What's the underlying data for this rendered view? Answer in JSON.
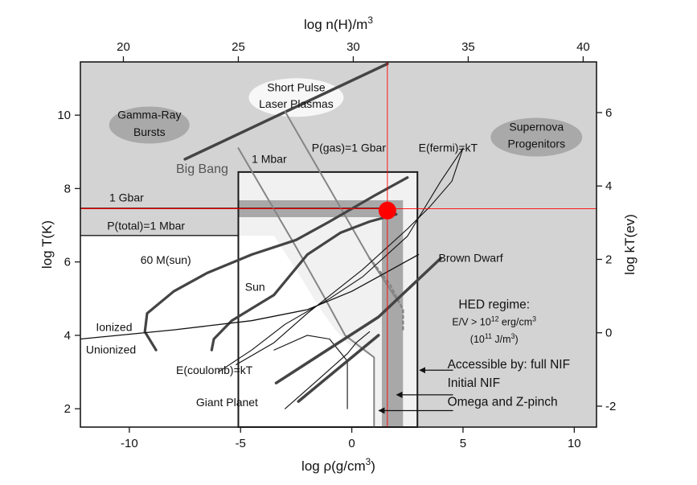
{
  "chart_data": {
    "type": "line",
    "title": "",
    "x_axis": {
      "label_prefix": "log ",
      "label_rho": "ρ",
      "label_suffix": "(g/cm",
      "label_sup": "3",
      "label_close": ")",
      "range": [
        -12.2,
        11
      ],
      "ticks": [
        -10,
        -5,
        0,
        5,
        10
      ]
    },
    "y_axis": {
      "label": "log T(K)",
      "range": [
        1.5,
        11.45
      ],
      "ticks": [
        2,
        4,
        6,
        8,
        10
      ]
    },
    "top_axis": {
      "label_prefix": "log n(H)/m",
      "label_sup": "3",
      "ticks": [
        20,
        25,
        30,
        35,
        40
      ]
    },
    "right_axis": {
      "label": "log kT(ev)",
      "ticks": [
        -2,
        0,
        2,
        4,
        6
      ]
    },
    "grid": false,
    "colors": {
      "hed_region": "#d3d3d3",
      "inner_box": "#f1f1f1",
      "gray_band": "#a8a8a8",
      "curve_dark": "#444444",
      "curve_gray": "#858585",
      "red": "#ff0000",
      "ellipse_dark": "#a9a9a9",
      "ellipse_light": "#f7f7f7"
    },
    "reference_point": {
      "x": 1.6,
      "y": 7.4
    },
    "crosshair": {
      "x": 1.6,
      "y": 7.45
    },
    "series": [
      {
        "kind": "big-bang",
        "points": [
          [
            -7.5,
            8.8
          ],
          [
            1.6,
            11.4
          ]
        ]
      },
      {
        "kind": "1-gbar-line",
        "points": [
          [
            -12.2,
            7.46
          ],
          [
            1.6,
            7.46
          ]
        ]
      },
      {
        "kind": "p-total-1-mbar",
        "points": [
          [
            -12.2,
            6.72
          ],
          [
            -5.1,
            6.72
          ]
        ]
      },
      {
        "kind": "1-mbar",
        "points": [
          [
            -5.1,
            9.1
          ],
          [
            -2.5,
            6.4
          ],
          [
            -1.2,
            5.0
          ],
          [
            -0.3,
            4.0
          ],
          [
            1.0,
            3.4
          ],
          [
            1.0,
            1.5
          ]
        ]
      },
      {
        "kind": "p-gas-1-gbar",
        "points": [
          [
            -3.0,
            10.1
          ],
          [
            -1.0,
            8.0
          ],
          [
            0.8,
            6.1
          ],
          [
            2.0,
            5.0
          ]
        ]
      },
      {
        "kind": "p-gas-1-gbar-dotted",
        "points": [
          [
            0.8,
            6.1
          ],
          [
            1.7,
            5.4
          ],
          [
            2.3,
            4.7
          ],
          [
            2.3,
            4.1
          ]
        ]
      },
      {
        "kind": "60-m-sun",
        "points": [
          [
            -8.8,
            3.6
          ],
          [
            -9.3,
            4.1
          ],
          [
            -9.2,
            4.6
          ],
          [
            -8.0,
            5.2
          ],
          [
            -6.5,
            5.7
          ],
          [
            -4.5,
            6.2
          ],
          [
            -2.5,
            6.6
          ],
          [
            -1.0,
            7.1
          ],
          [
            1.0,
            7.8
          ],
          [
            2.5,
            8.3
          ]
        ]
      },
      {
        "kind": "sun",
        "points": [
          [
            -6.3,
            3.6
          ],
          [
            -6.2,
            3.9
          ],
          [
            -5.4,
            4.4
          ],
          [
            -3.5,
            5.1
          ],
          [
            -2.0,
            6.2
          ],
          [
            -0.5,
            6.8
          ],
          [
            0.8,
            7.1
          ],
          [
            2.0,
            7.3
          ]
        ]
      },
      {
        "kind": "unionized-boundary",
        "points": [
          [
            -12.2,
            3.9
          ],
          [
            -8.0,
            4.15
          ],
          [
            -4.5,
            4.4
          ],
          [
            -2.0,
            4.7
          ],
          [
            0.0,
            5.2
          ],
          [
            1.5,
            5.7
          ],
          [
            3.0,
            6.2
          ]
        ]
      },
      {
        "kind": "e-coulomb-kt",
        "points": [
          [
            -6.0,
            3.0
          ],
          [
            -4.5,
            3.6
          ],
          [
            -3.0,
            4.3
          ],
          [
            -1.0,
            5.0
          ],
          [
            0.5,
            5.6
          ],
          [
            2.5,
            6.7
          ],
          [
            4.0,
            8.2
          ],
          [
            5.0,
            9.1
          ]
        ]
      },
      {
        "kind": "e-fermi-kt",
        "points": [
          [
            -5.2,
            3.2
          ],
          [
            -3.5,
            3.8
          ],
          [
            -2.0,
            4.6
          ],
          [
            0.5,
            5.8
          ],
          [
            2.5,
            6.9
          ],
          [
            3.5,
            7.5
          ],
          [
            4.5,
            8.2
          ],
          [
            5.0,
            9.1
          ]
        ]
      },
      {
        "kind": "giant-planet",
        "points": [
          [
            -3.0,
            2.0
          ],
          [
            -1.5,
            2.8
          ],
          [
            -0.2,
            3.5
          ],
          [
            0.2,
            3.8
          ],
          [
            0.8,
            4.1
          ]
        ]
      },
      {
        "kind": "giant-planet-dome",
        "points": [
          [
            -0.2,
            2.0
          ],
          [
            -0.2,
            3.3
          ],
          [
            -1.0,
            3.9
          ],
          [
            -2.0,
            4.0
          ],
          [
            -3.5,
            3.6
          ]
        ]
      },
      {
        "kind": "brown-dwarf",
        "points": [
          [
            -3.4,
            2.7
          ],
          [
            1.2,
            4.5
          ],
          [
            4.0,
            6.1
          ]
        ]
      },
      {
        "kind": "brown-dwarf-lower",
        "points": [
          [
            -2.4,
            2.2
          ],
          [
            1.2,
            4.0
          ]
        ]
      }
    ],
    "annotations": {
      "big_bang": "Big Bang",
      "one_gbar": "1 Gbar",
      "p_total": "P(total)=1 Mbar",
      "one_mbar": "1 Mbar",
      "p_gas": "P(gas)=1 Gbar",
      "e_fermi": "E(fermi)=kT",
      "e_coulomb": "E(coulomb)=kT",
      "sixty_m_sun": "60 M(sun)",
      "sun": "Sun",
      "ionized": "Ionized",
      "unionized": "Unionized",
      "giant_planet": "Giant Planet",
      "brown_dwarf": "Brown Dwarf",
      "hed_title": "HED regime:",
      "hed_ev_prefix": "E/V > 10",
      "hed_ev_sup": "12",
      "hed_ev_suffix": " erg/cm",
      "hed_ev_sup2": "3",
      "hed_jm_prefix": "(10",
      "hed_jm_sup": "11",
      "hed_jm_suffix": " J/m",
      "hed_jm_sup2": "3",
      "hed_jm_close": ")",
      "accessible_full_nif": "Accessible by: full NIF",
      "initial_nif": "Initial NIF",
      "omega_zpinch": "Omega and Z-pinch",
      "gamma_ray_1": "Gamma-Ray",
      "gamma_ray_2": "Bursts",
      "short_pulse_1": "Short Pulse",
      "short_pulse_2": "Laser Plasmas",
      "supernova_1": "Supernova",
      "supernova_2": "Progenitors"
    }
  }
}
